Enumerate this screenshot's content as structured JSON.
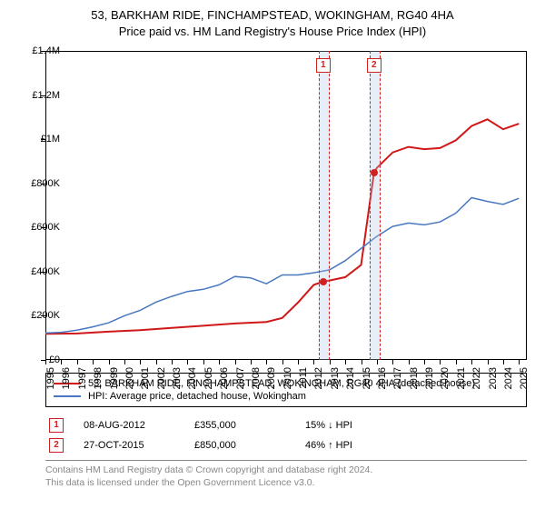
{
  "title_line1": "53, BARKHAM RIDE, FINCHAMPSTEAD, WOKINGHAM, RG40 4HA",
  "title_line2": "Price paid vs. HM Land Registry's House Price Index (HPI)",
  "chart": {
    "type": "line",
    "background_color": "#ffffff",
    "border_color": "#000000",
    "yaxis": {
      "min": 0,
      "max": 1400000,
      "step": 200000,
      "labels": [
        "£0",
        "£200K",
        "£400K",
        "£600K",
        "£800K",
        "£1M",
        "£1.2M",
        "£1.4M"
      ],
      "label_fontsize": 11
    },
    "xaxis": {
      "min": 1995,
      "max": 2025.5,
      "ticks": [
        1995,
        1996,
        1997,
        1998,
        1999,
        2000,
        2001,
        2002,
        2003,
        2004,
        2005,
        2006,
        2007,
        2008,
        2009,
        2010,
        2011,
        2012,
        2013,
        2014,
        2015,
        2016,
        2017,
        2018,
        2019,
        2020,
        2021,
        2022,
        2023,
        2024,
        2025
      ],
      "label_fontsize": 11
    },
    "series": [
      {
        "name": "price_paid",
        "color": "#d01818",
        "width": 2,
        "points": [
          [
            1995,
            118000
          ],
          [
            1997,
            120000
          ],
          [
            1999,
            128000
          ],
          [
            2001,
            135000
          ],
          [
            2003,
            145000
          ],
          [
            2005,
            155000
          ],
          [
            2007,
            165000
          ],
          [
            2009,
            172000
          ],
          [
            2010,
            190000
          ],
          [
            2011,
            260000
          ],
          [
            2012,
            340000
          ],
          [
            2012.6,
            355000
          ],
          [
            2013,
            360000
          ],
          [
            2014,
            375000
          ],
          [
            2015,
            430000
          ],
          [
            2015.82,
            850000
          ],
          [
            2016,
            870000
          ],
          [
            2017,
            940000
          ],
          [
            2018,
            965000
          ],
          [
            2019,
            955000
          ],
          [
            2020,
            960000
          ],
          [
            2021,
            995000
          ],
          [
            2022,
            1060000
          ],
          [
            2023,
            1090000
          ],
          [
            2024,
            1045000
          ],
          [
            2025,
            1070000
          ]
        ]
      },
      {
        "name": "hpi",
        "color": "#4a78c0",
        "width": 1.5,
        "points": [
          [
            1995,
            122000
          ],
          [
            1996,
            125000
          ],
          [
            1997,
            135000
          ],
          [
            1998,
            150000
          ],
          [
            1999,
            168000
          ],
          [
            2000,
            200000
          ],
          [
            2001,
            225000
          ],
          [
            2002,
            262000
          ],
          [
            2003,
            288000
          ],
          [
            2004,
            310000
          ],
          [
            2005,
            320000
          ],
          [
            2006,
            340000
          ],
          [
            2007,
            378000
          ],
          [
            2008,
            372000
          ],
          [
            2009,
            345000
          ],
          [
            2010,
            385000
          ],
          [
            2011,
            385000
          ],
          [
            2012,
            395000
          ],
          [
            2013,
            408000
          ],
          [
            2014,
            450000
          ],
          [
            2015,
            505000
          ],
          [
            2016,
            560000
          ],
          [
            2017,
            605000
          ],
          [
            2018,
            620000
          ],
          [
            2019,
            612000
          ],
          [
            2020,
            625000
          ],
          [
            2021,
            665000
          ],
          [
            2022,
            735000
          ],
          [
            2023,
            718000
          ],
          [
            2024,
            705000
          ],
          [
            2025,
            732000
          ]
        ]
      }
    ],
    "markers": [
      {
        "id": "1",
        "x": 2012.6,
        "y": 355000,
        "band_width": 0.6
      },
      {
        "id": "2",
        "x": 2015.82,
        "y": 850000,
        "band_width": 0.6
      }
    ],
    "marker_band_color": "rgba(180,200,230,0.3)",
    "marker_dash_color": "#d02020",
    "dot_color": "#d02020"
  },
  "legend": {
    "items": [
      {
        "color": "#d01818",
        "width": 2,
        "label": "53, BARKHAM RIDE, FINCHAMPSTEAD, WOKINGHAM, RG40 4HA (detached house)"
      },
      {
        "color": "#4a78c0",
        "width": 1.5,
        "label": "HPI: Average price, detached house, Wokingham"
      }
    ]
  },
  "sales": [
    {
      "id": "1",
      "date": "08-AUG-2012",
      "price": "£355,000",
      "pct": "15%",
      "arrow": "↓",
      "suffix": "HPI"
    },
    {
      "id": "2",
      "date": "27-OCT-2015",
      "price": "£850,000",
      "pct": "46%",
      "arrow": "↑",
      "suffix": "HPI"
    }
  ],
  "footer_line1": "Contains HM Land Registry data © Crown copyright and database right 2024.",
  "footer_line2": "This data is licensed under the Open Government Licence v3.0."
}
